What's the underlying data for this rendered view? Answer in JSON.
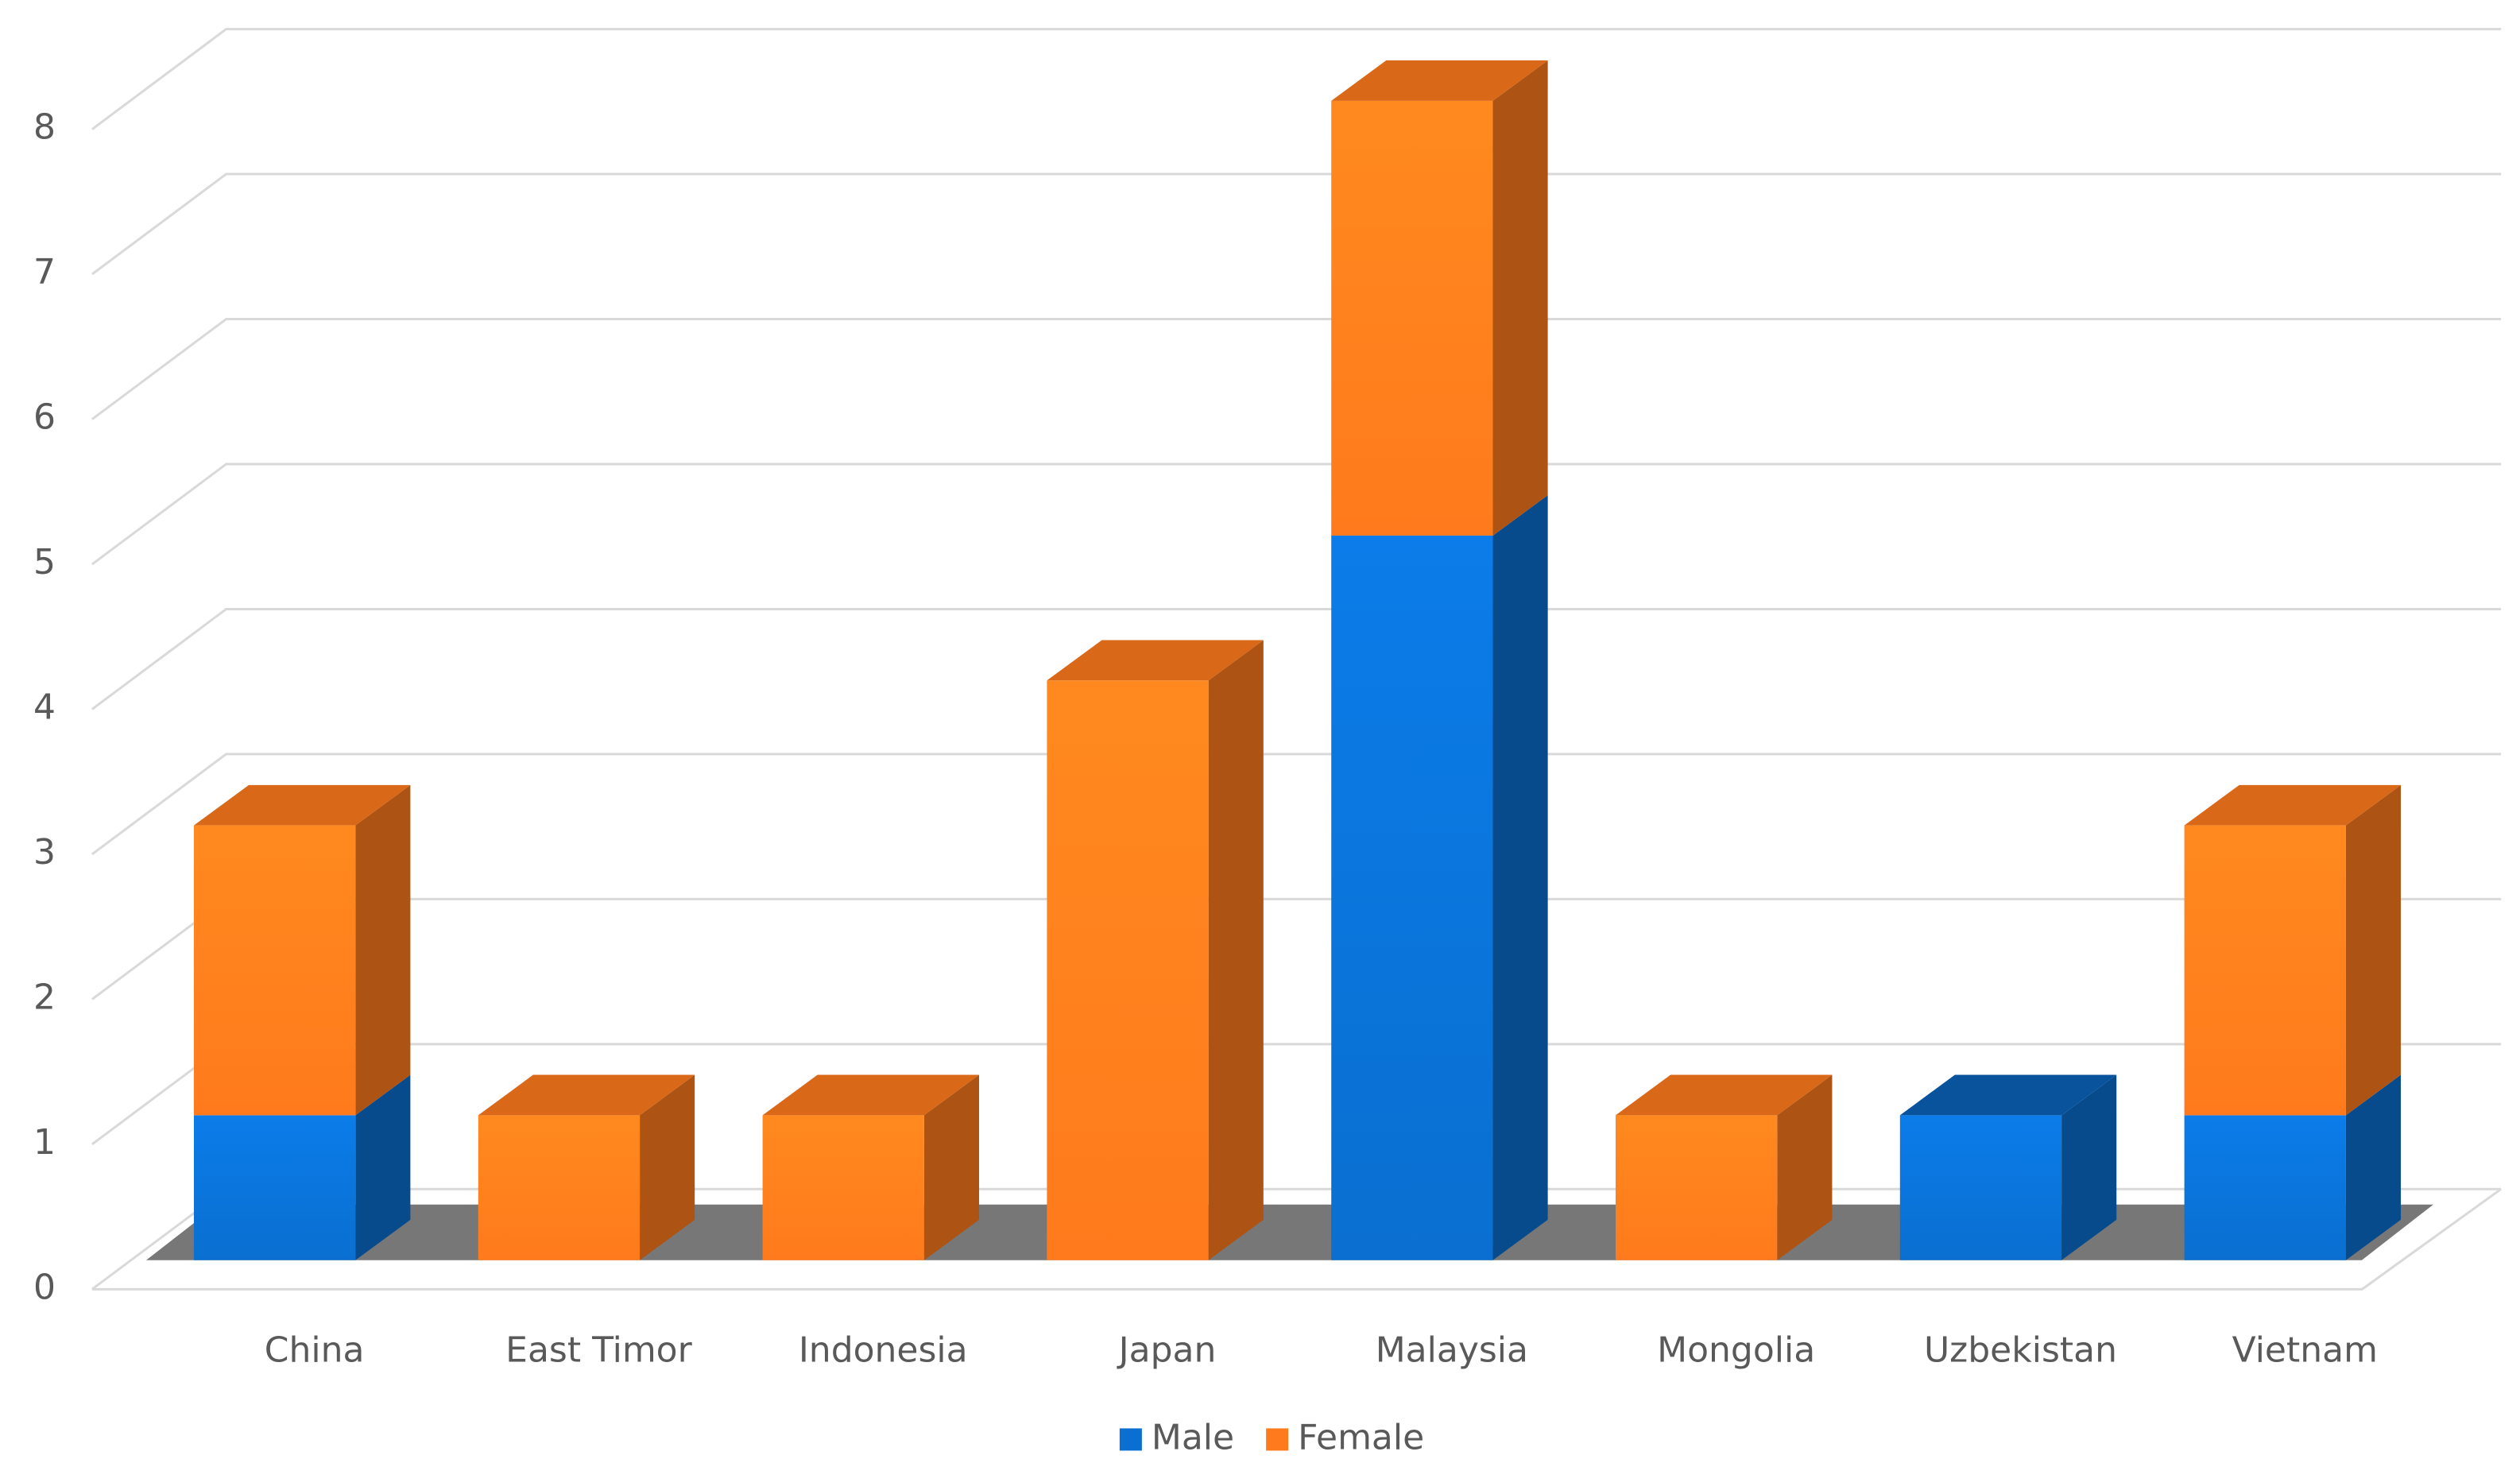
{
  "chart_data": {
    "type": "bar3d_stacked",
    "categories": [
      "China",
      "East Timor",
      "Indonesia",
      "Japan",
      "Malaysia",
      "Mongolia",
      "Uzbekistan",
      "Vietnam"
    ],
    "series": [
      {
        "name": "Male",
        "color": "#0a6fd0",
        "values": [
          1,
          0,
          0,
          0,
          5,
          0,
          1,
          1
        ]
      },
      {
        "name": "Female",
        "color": "#ff7a1c",
        "values": [
          2,
          1,
          1,
          4,
          3,
          1,
          0,
          2
        ]
      }
    ],
    "ylim": [
      0,
      8
    ],
    "yticks": [
      0,
      1,
      2,
      3,
      4,
      5,
      6,
      7,
      8
    ],
    "grid": true,
    "legend": "bottom"
  }
}
